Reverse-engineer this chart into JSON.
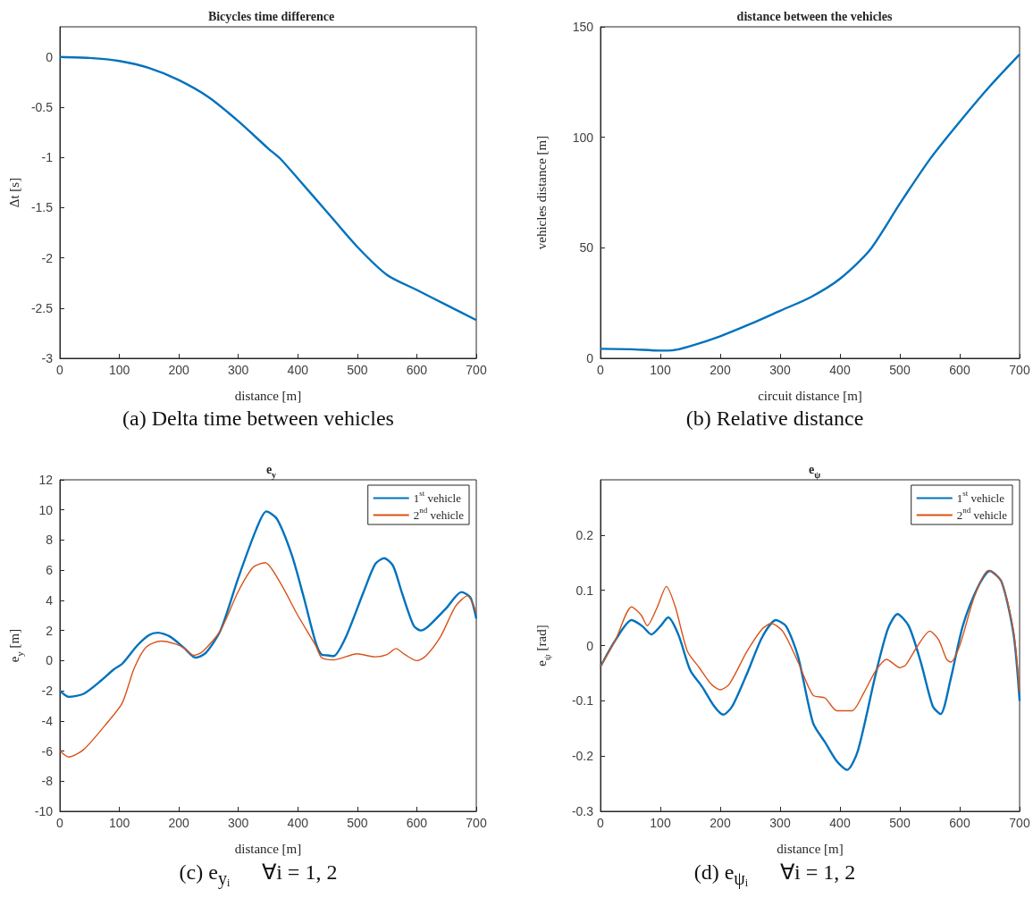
{
  "chart_data": [
    {
      "type": "line",
      "title": "Bicycles time difference",
      "xlabel": "distance [m]",
      "ylabel": "Δt [s]",
      "color": "#0072bd",
      "x": [
        0,
        50,
        100,
        150,
        200,
        250,
        300,
        350,
        370,
        400,
        450,
        500,
        550,
        600,
        650,
        700
      ],
      "values": [
        0,
        -0.01,
        -0.04,
        -0.11,
        -0.23,
        -0.4,
        -0.64,
        -0.91,
        -1.01,
        -1.21,
        -1.55,
        -1.89,
        -2.17,
        -2.32,
        -2.47,
        -2.62
      ],
      "xlim": [
        0,
        700
      ],
      "xticks": [
        0,
        100,
        200,
        300,
        400,
        500,
        600,
        700
      ],
      "ylim": [
        -3,
        0.3
      ],
      "yticks": [
        -3,
        -2.5,
        -2,
        -1.5,
        -1,
        -0.5,
        0
      ],
      "annotations": [
        "(a) Delta time between vehicles"
      ]
    },
    {
      "type": "line",
      "title": "distance between the vehicles",
      "xlabel": "circuit distance [m]",
      "ylabel": "vehicles distance [m]",
      "color": "#0072bd",
      "x": [
        0,
        50,
        100,
        120,
        150,
        200,
        250,
        300,
        350,
        400,
        450,
        500,
        550,
        600,
        650,
        700
      ],
      "values": [
        4.3,
        4.1,
        3.5,
        3.6,
        5.5,
        10,
        15.5,
        21.5,
        27.5,
        36,
        49,
        70,
        90,
        107,
        123,
        137.5
      ],
      "xlim": [
        0,
        700
      ],
      "xticks": [
        0,
        100,
        200,
        300,
        400,
        500,
        600,
        700
      ],
      "ylim": [
        0,
        150
      ],
      "yticks": [
        0,
        50,
        100,
        150
      ],
      "annotations": [
        "(b) Relative distance"
      ]
    },
    {
      "type": "line",
      "title": "e$_{y}$",
      "xlabel": "distance [m]",
      "ylabel": "e$_{y}$ [m]",
      "legend": "top right",
      "series": [
        {
          "name": "1$^{st}$ vehicle",
          "color": "#0072bd",
          "x": [
            0,
            15,
            40,
            70,
            90,
            105,
            130,
            150,
            165,
            185,
            210,
            228,
            245,
            270,
            300,
            330,
            347,
            365,
            390,
            410,
            430,
            440,
            450,
            460,
            480,
            510,
            530,
            545,
            560,
            575,
            595,
            607,
            620,
            650,
            675,
            690,
            700
          ],
          "values": [
            -2.0,
            -2.4,
            -2.2,
            -1.3,
            -0.6,
            -0.2,
            1.0,
            1.7,
            1.85,
            1.6,
            0.8,
            0.2,
            0.5,
            2.0,
            5.5,
            8.7,
            9.9,
            9.4,
            7.0,
            4.2,
            1.2,
            0.4,
            0.35,
            0.3,
            1.5,
            4.5,
            6.4,
            6.8,
            6.3,
            4.5,
            2.3,
            2.0,
            2.3,
            3.5,
            4.55,
            4.2,
            2.8
          ]
        },
        {
          "name": "2$^{nd}$ vehicle",
          "color": "#d95319",
          "x": [
            0,
            15,
            40,
            80,
            105,
            125,
            145,
            170,
            195,
            210,
            225,
            240,
            270,
            300,
            325,
            345,
            370,
            400,
            430,
            440,
            460,
            500,
            530,
            550,
            565,
            580,
            600,
            615,
            640,
            665,
            685,
            700
          ],
          "values": [
            -6.0,
            -6.4,
            -5.9,
            -4.1,
            -2.8,
            -0.5,
            0.9,
            1.3,
            1.1,
            0.8,
            0.35,
            0.6,
            2.0,
            4.6,
            6.2,
            6.5,
            5.2,
            3.0,
            1.0,
            0.2,
            0.05,
            0.45,
            0.25,
            0.4,
            0.8,
            0.4,
            0.0,
            0.3,
            1.6,
            3.6,
            4.3,
            3.2
          ]
        }
      ],
      "xlim": [
        0,
        700
      ],
      "xticks": [
        0,
        100,
        200,
        300,
        400,
        500,
        600,
        700
      ],
      "ylim": [
        -10,
        12
      ],
      "yticks": [
        -10,
        -8,
        -6,
        -4,
        -2,
        0,
        2,
        4,
        6,
        8,
        10,
        12
      ],
      "annotations": [
        "(c) e$_{yᵢ}$      ∀i = 1, 2"
      ]
    },
    {
      "type": "line",
      "title": "e$_{ψ}$",
      "xlabel": "distance [m]",
      "ylabel": "e$_{ψ}$ [rad]",
      "legend": "top right",
      "series": [
        {
          "name": "1$^{st}$ vehicle",
          "color": "#0072bd",
          "x": [
            0,
            25,
            52,
            70,
            85,
            100,
            113,
            130,
            150,
            170,
            190,
            205,
            220,
            245,
            270,
            293,
            310,
            330,
            355,
            375,
            395,
            412,
            430,
            460,
            480,
            496,
            515,
            535,
            555,
            568,
            585,
            605,
            630,
            650,
            670,
            690,
            700
          ],
          "values": [
            -0.038,
            0.01,
            0.046,
            0.035,
            0.02,
            0.035,
            0.051,
            0.02,
            -0.045,
            -0.075,
            -0.11,
            -0.125,
            -0.11,
            -0.05,
            0.015,
            0.046,
            0.035,
            -0.02,
            -0.14,
            -0.175,
            -0.21,
            -0.225,
            -0.19,
            -0.05,
            0.03,
            0.057,
            0.035,
            -0.03,
            -0.11,
            -0.124,
            -0.06,
            0.035,
            0.105,
            0.135,
            0.115,
            0.02,
            -0.1
          ]
        },
        {
          "name": "2$^{nd}$ vehicle",
          "color": "#d95319",
          "x": [
            0,
            25,
            52,
            68,
            78,
            95,
            110,
            125,
            145,
            165,
            185,
            200,
            215,
            245,
            270,
            285,
            305,
            330,
            355,
            375,
            395,
            420,
            440,
            460,
            478,
            500,
            510,
            530,
            550,
            565,
            578,
            585,
            600,
            625,
            648,
            670,
            690,
            700
          ],
          "values": [
            -0.038,
            0.01,
            0.07,
            0.055,
            0.036,
            0.07,
            0.107,
            0.07,
            -0.01,
            -0.04,
            -0.07,
            -0.08,
            -0.07,
            -0.01,
            0.03,
            0.04,
            0.025,
            -0.03,
            -0.09,
            -0.095,
            -0.118,
            -0.118,
            -0.085,
            -0.045,
            -0.025,
            -0.04,
            -0.035,
            0.0,
            0.026,
            0.01,
            -0.025,
            -0.03,
            0.0,
            0.09,
            0.136,
            0.115,
            0.025,
            -0.085
          ]
        }
      ],
      "xlim": [
        0,
        700
      ],
      "xticks": [
        0,
        100,
        200,
        300,
        400,
        500,
        600,
        700
      ],
      "ylim": [
        -0.3,
        0.3
      ],
      "yticks": [
        -0.3,
        -0.2,
        -0.1,
        0,
        0.1,
        0.2
      ],
      "annotations": [
        "(d) e$_{ψᵢ}$      ∀i = 1, 2"
      ]
    }
  ]
}
